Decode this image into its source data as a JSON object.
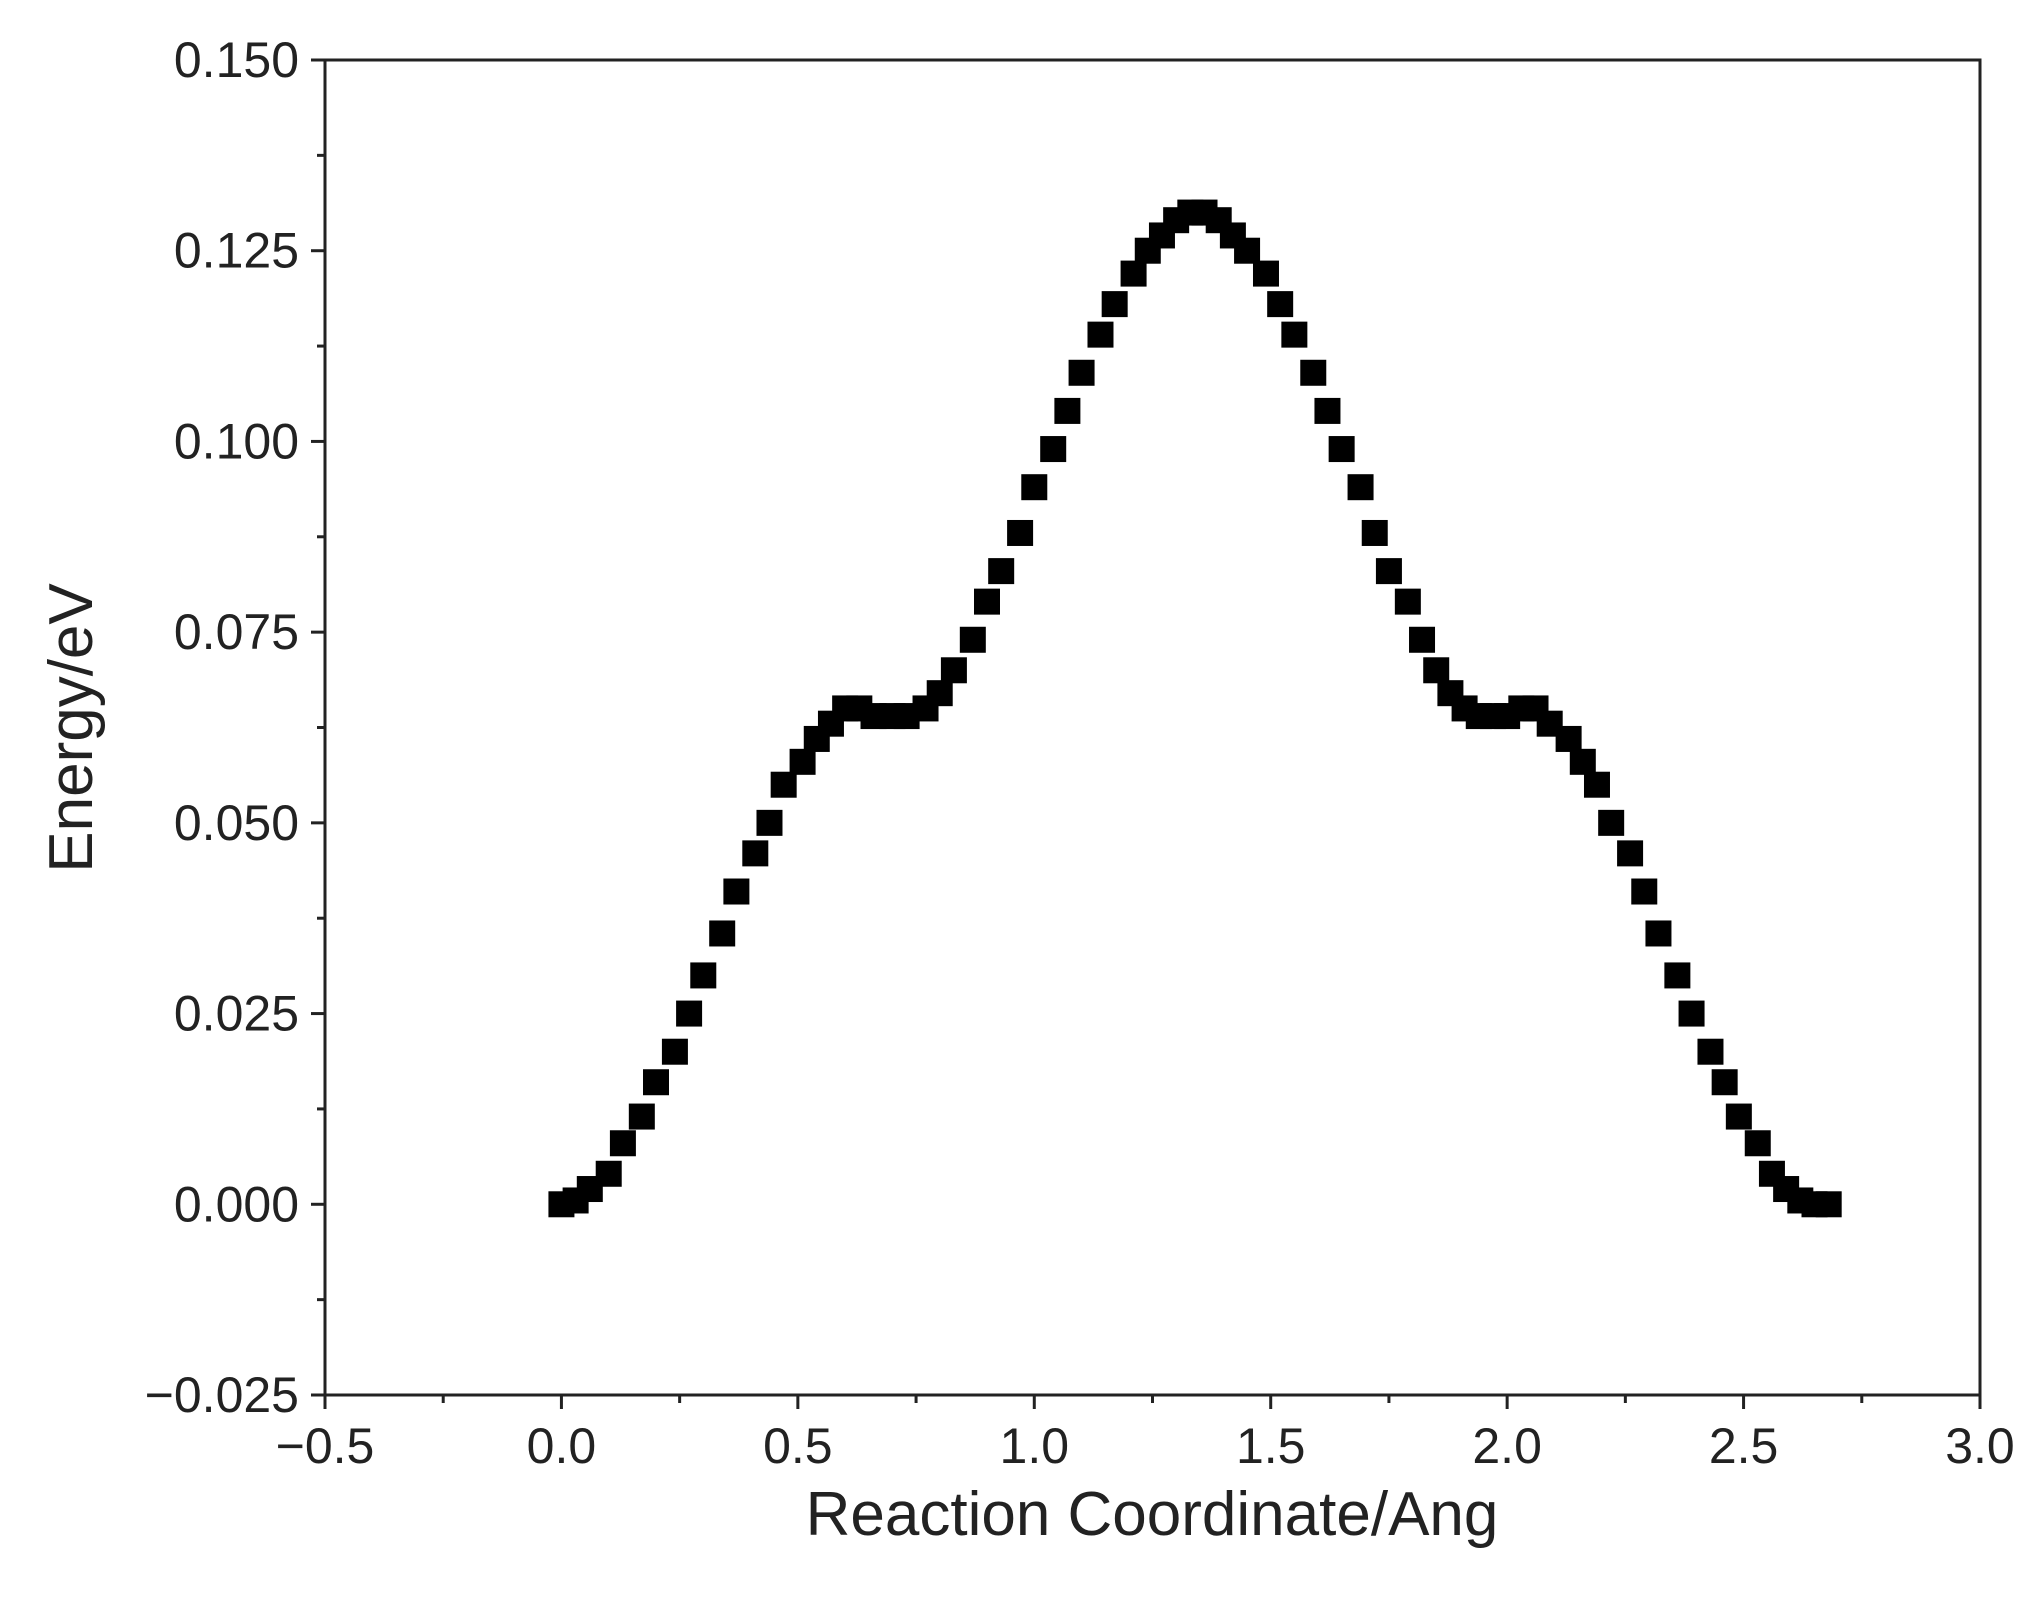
{
  "chart_data": {
    "type": "scatter",
    "title": "",
    "xlabel": "Reaction Coordinate/Ang",
    "ylabel": "Energy/eV",
    "xlim": [
      -0.5,
      3.0
    ],
    "ylim": [
      -0.025,
      0.15
    ],
    "xticks": [
      -0.5,
      0.0,
      0.5,
      1.0,
      1.5,
      2.0,
      2.5,
      3.0
    ],
    "xtick_labels": [
      "−0.5",
      "0.0",
      "0.5",
      "1.0",
      "1.5",
      "2.0",
      "2.5",
      "3.0"
    ],
    "yticks": [
      -0.025,
      0.0,
      0.025,
      0.05,
      0.075,
      0.1,
      0.125,
      0.15
    ],
    "ytick_labels": [
      "−0.025",
      "0.000",
      "0.025",
      "0.050",
      "0.075",
      "0.100",
      "0.125",
      "0.150"
    ],
    "grid": false,
    "legend": "none",
    "marker": "square",
    "marker_color": "#000000",
    "series": [
      {
        "x": [
          0.0,
          0.03,
          0.06,
          0.1,
          0.13,
          0.17,
          0.2,
          0.24,
          0.27,
          0.3,
          0.34,
          0.37,
          0.41,
          0.44,
          0.47,
          0.51,
          0.54,
          0.57,
          0.6,
          0.63,
          0.66,
          0.7,
          0.73,
          0.77,
          0.8,
          0.83,
          0.87,
          0.9,
          0.93,
          0.97,
          1.0,
          1.04,
          1.07,
          1.1,
          1.14,
          1.17,
          1.21,
          1.24,
          1.27,
          1.3,
          1.33,
          1.36,
          1.39,
          1.42,
          1.45,
          1.49,
          1.52,
          1.55,
          1.59,
          1.62,
          1.65,
          1.69,
          1.72,
          1.75,
          1.79,
          1.82,
          1.85,
          1.88,
          1.91,
          1.94,
          1.97,
          2.0,
          2.03,
          2.06,
          2.09,
          2.13,
          2.16,
          2.19,
          2.22,
          2.26,
          2.29,
          2.32,
          2.36,
          2.39,
          2.43,
          2.46,
          2.49,
          2.53,
          2.56,
          2.59,
          2.62,
          2.65,
          2.68
        ],
        "y": [
          0.0,
          0.0005,
          0.002,
          0.004,
          0.008,
          0.0115,
          0.016,
          0.02,
          0.025,
          0.03,
          0.0355,
          0.041,
          0.046,
          0.05,
          0.055,
          0.058,
          0.061,
          0.063,
          0.065,
          0.065,
          0.064,
          0.064,
          0.064,
          0.065,
          0.067,
          0.07,
          0.074,
          0.079,
          0.083,
          0.088,
          0.094,
          0.099,
          0.104,
          0.109,
          0.114,
          0.118,
          0.122,
          0.125,
          0.127,
          0.129,
          0.13,
          0.13,
          0.129,
          0.127,
          0.125,
          0.122,
          0.118,
          0.114,
          0.109,
          0.104,
          0.099,
          0.094,
          0.088,
          0.083,
          0.079,
          0.074,
          0.07,
          0.067,
          0.065,
          0.064,
          0.064,
          0.064,
          0.065,
          0.065,
          0.063,
          0.061,
          0.058,
          0.055,
          0.05,
          0.046,
          0.041,
          0.0355,
          0.03,
          0.025,
          0.02,
          0.016,
          0.0115,
          0.008,
          0.004,
          0.002,
          0.0005,
          0.0,
          0.0
        ]
      }
    ]
  }
}
